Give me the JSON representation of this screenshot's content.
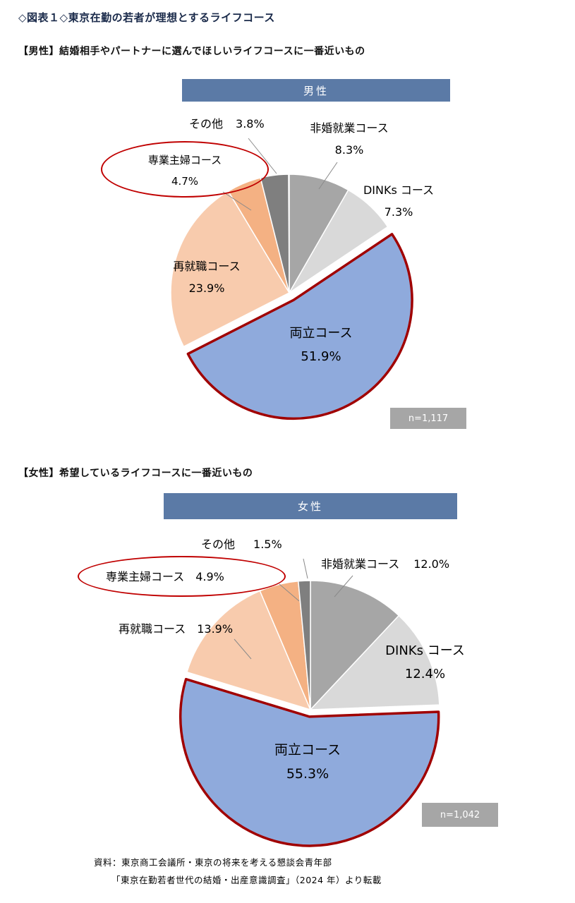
{
  "page": {
    "title": "◇図表１◇東京在勤の若者が理想とするライフコース",
    "male_section_label": "【男性】結婚相手やパートナーに選んでほしいライフコースに一番近いもの",
    "female_section_label": "【女性】希望しているライフコースに一番近いもの",
    "source_line1": "資料：東京商工会議所・東京の将来を考える懇談会青年部",
    "source_line2": "「東京在勤若者世代の結婚・出産意識調査」（2024 年）より転載"
  },
  "colors": {
    "header_bar": "#5b7aa6",
    "highlight_outline": "#a00000",
    "circle_annotation": "#c00000",
    "n_box": "#a6a6a6",
    "leader_line": "#8a8a8a"
  },
  "chart_data": [
    {
      "type": "pie",
      "title": "男性",
      "n_label": "n=1,117",
      "start_angle_deg": 0,
      "direction": "clockwise",
      "unit": "%",
      "slices": [
        {
          "key": "hikon",
          "name": "非婚就業コース",
          "value": 8.3,
          "pct": "8.3%",
          "color": "#a6a6a6"
        },
        {
          "key": "dinks",
          "name": "DINKs コース",
          "value": 7.3,
          "pct": "7.3%",
          "color": "#d9d9d9"
        },
        {
          "key": "ryoritsu",
          "name": "両立コース",
          "value": 51.9,
          "pct": "51.9%",
          "color": "#8faadc",
          "outline": "#a00000",
          "exploded": true
        },
        {
          "key": "saishushoku",
          "name": "再就職コース",
          "value": 23.9,
          "pct": "23.9%",
          "color": "#f8cbad"
        },
        {
          "key": "sengyoshufu",
          "name": "専業主婦コース",
          "value": 4.7,
          "pct": "4.7%",
          "color": "#f4b183",
          "circled": true
        },
        {
          "key": "sonota",
          "name": "その他",
          "value": 3.8,
          "pct": "3.8%",
          "color": "#7f7f7f"
        }
      ]
    },
    {
      "type": "pie",
      "title": "女性",
      "n_label": "n=1,042",
      "start_angle_deg": 0,
      "direction": "clockwise",
      "unit": "%",
      "slices": [
        {
          "key": "hikon",
          "name": "非婚就業コース",
          "value": 12.0,
          "pct": "12.0%",
          "color": "#a6a6a6"
        },
        {
          "key": "dinks",
          "name": "DINKs コース",
          "value": 12.4,
          "pct": "12.4%",
          "color": "#d9d9d9"
        },
        {
          "key": "ryoritsu",
          "name": "両立コース",
          "value": 55.3,
          "pct": "55.3%",
          "color": "#8faadc",
          "outline": "#a00000",
          "exploded": true
        },
        {
          "key": "saishushoku",
          "name": "再就職コース",
          "value": 13.9,
          "pct": "13.9%",
          "color": "#f8cbad"
        },
        {
          "key": "sengyoshufu",
          "name": "専業主婦コース",
          "value": 4.9,
          "pct": "4.9%",
          "color": "#f4b183",
          "circled": true
        },
        {
          "key": "sonota",
          "name": "その他",
          "value": 1.5,
          "pct": "1.5%",
          "color": "#7f7f7f"
        }
      ]
    }
  ]
}
